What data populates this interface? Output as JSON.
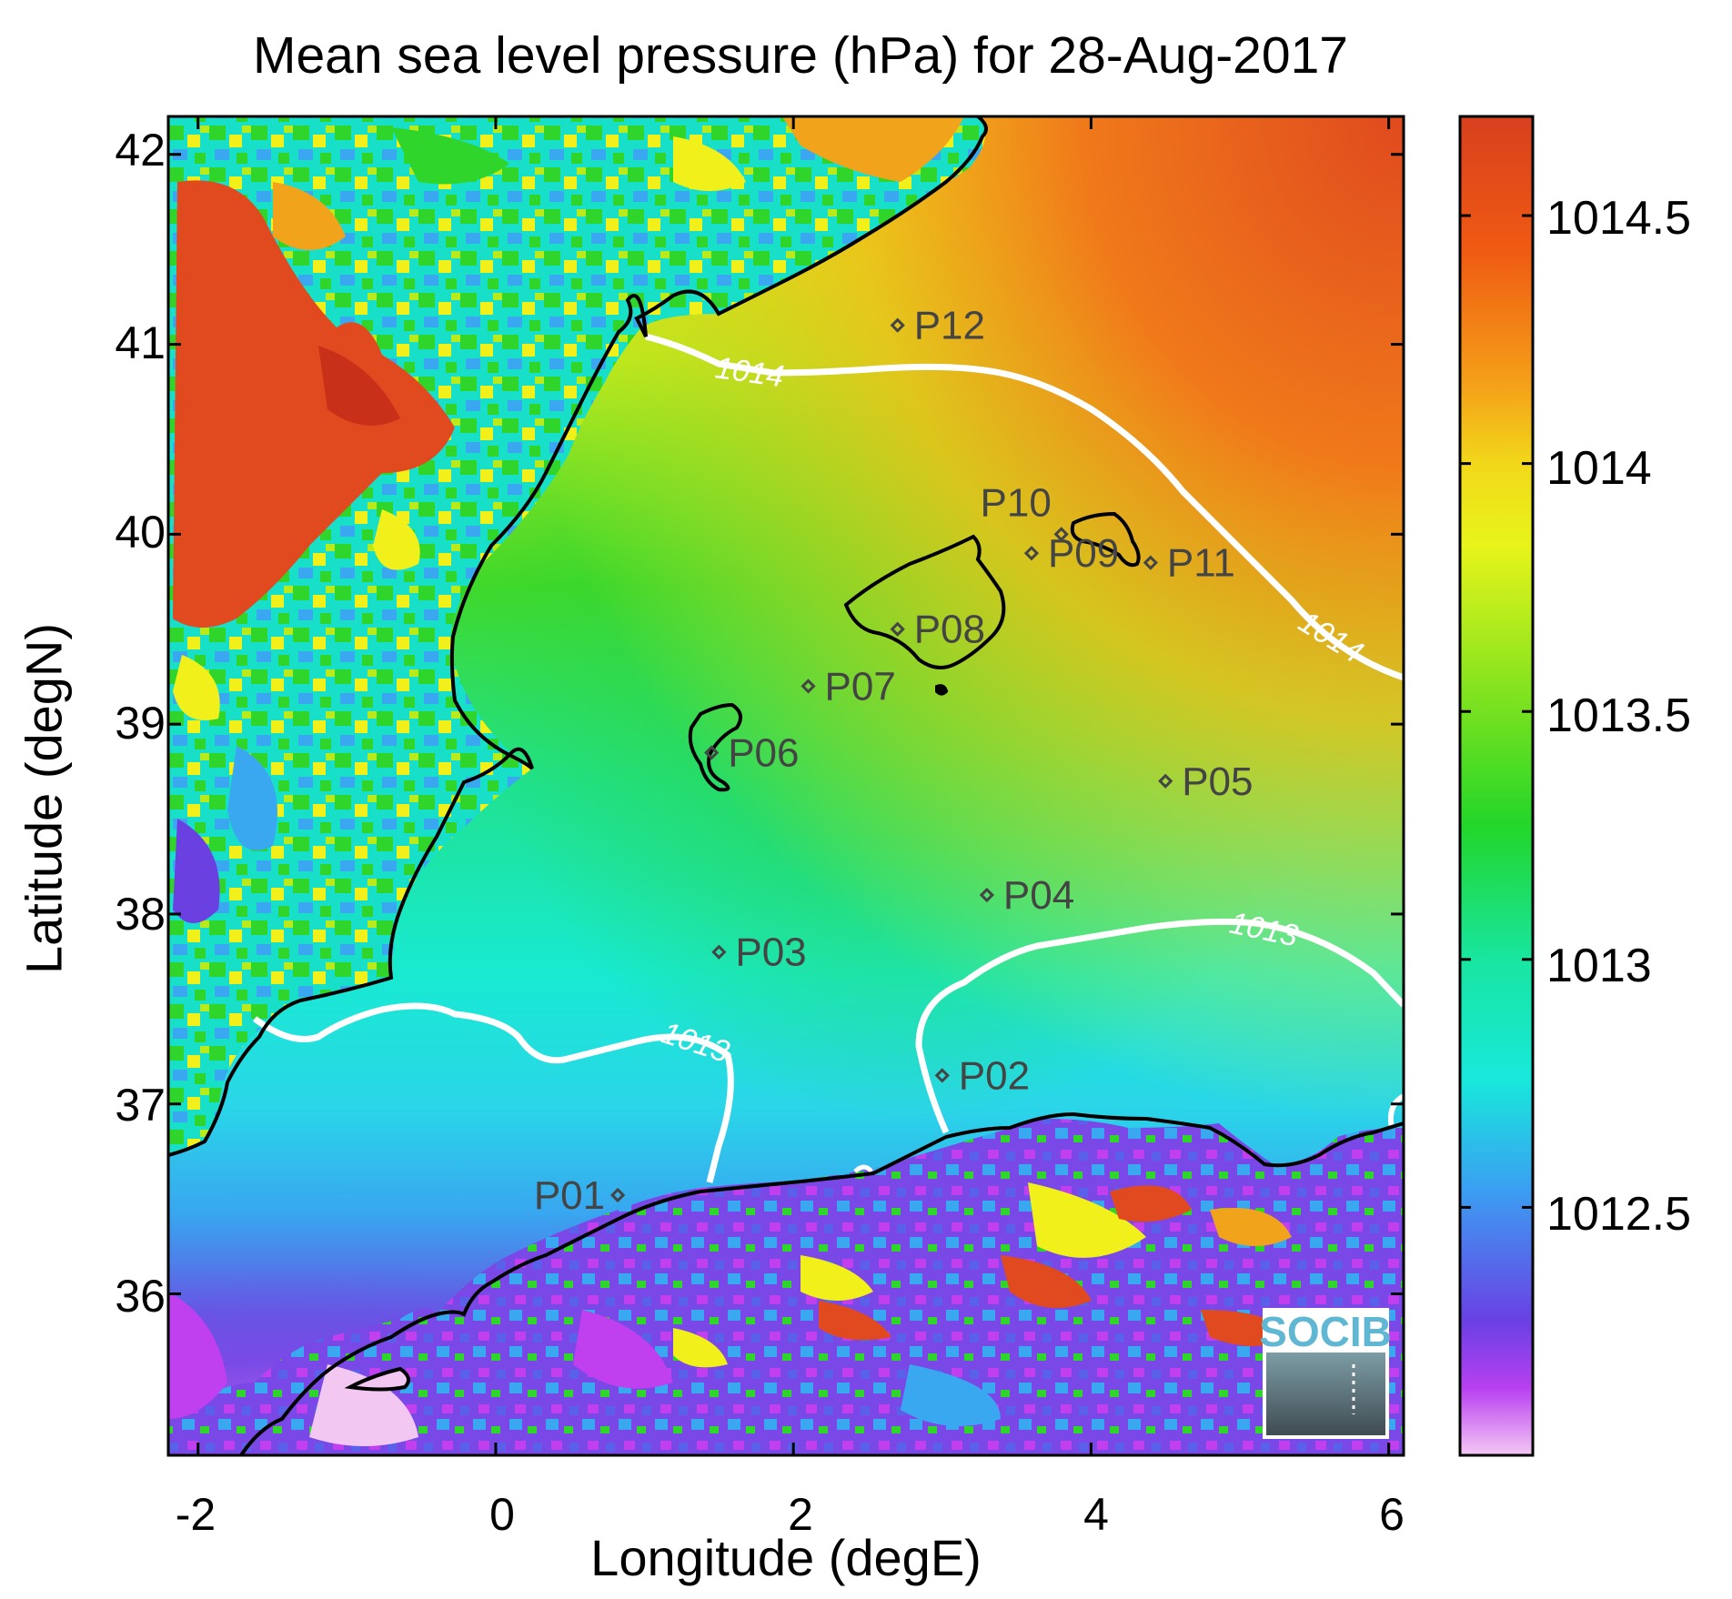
{
  "title": "Mean sea level pressure (hPa) for 28-Aug-2017",
  "xlabel": "Longitude (degE)",
  "ylabel": "Latitude (degN)",
  "xticks": [
    "-2",
    "0",
    "2",
    "4",
    "6"
  ],
  "yticks": [
    "42",
    "41",
    "40",
    "39",
    "38",
    "37",
    "36"
  ],
  "colorbar_ticks": [
    "1014.5",
    "1014",
    "1013.5",
    "1013",
    "1012.5"
  ],
  "contour_labels": [
    "1014",
    "1014",
    "1013",
    "1013"
  ],
  "stations": [
    {
      "id": "P01",
      "label": "P01"
    },
    {
      "id": "P02",
      "label": "P02"
    },
    {
      "id": "P03",
      "label": "P03"
    },
    {
      "id": "P04",
      "label": "P04"
    },
    {
      "id": "P05",
      "label": "P05"
    },
    {
      "id": "P06",
      "label": "P06"
    },
    {
      "id": "P07",
      "label": "P07"
    },
    {
      "id": "P08",
      "label": "P08"
    },
    {
      "id": "P09",
      "label": "P09"
    },
    {
      "id": "P10",
      "label": "P10"
    },
    {
      "id": "P11",
      "label": "P11"
    },
    {
      "id": "P12",
      "label": "P12"
    }
  ],
  "logo": "SOCIB",
  "colors": {
    "high": "#e04a1e",
    "orange": "#f2a31c",
    "yellow": "#f2f01a",
    "green": "#2fd52a",
    "cyan": "#18e8d8",
    "blue": "#3aa8f0",
    "purple": "#6a40e0",
    "magenta": "#c040f0",
    "low": "#f2c8f2",
    "contour": "#ffffff",
    "coast": "#000000"
  },
  "chart_data": {
    "type": "heatmap",
    "title": "Mean sea level pressure (hPa) for 28-Aug-2017",
    "xlabel": "Longitude (degE)",
    "ylabel": "Latitude (degN)",
    "xlim": [
      -2.2,
      6.1
    ],
    "ylim": [
      35.15,
      42.2
    ],
    "colorbar_range": [
      1012.0,
      1014.7
    ],
    "colorbar_ticks": [
      1014.5,
      1014,
      1013.5,
      1013,
      1012.5
    ],
    "contours": [
      1013,
      1014
    ],
    "stations": [
      {
        "name": "P01",
        "lon": 0.82,
        "lat": 36.52
      },
      {
        "name": "P02",
        "lon": 3.0,
        "lat": 37.15
      },
      {
        "name": "P03",
        "lon": 1.5,
        "lat": 37.8
      },
      {
        "name": "P04",
        "lon": 3.3,
        "lat": 38.1
      },
      {
        "name": "P05",
        "lon": 4.5,
        "lat": 38.7
      },
      {
        "name": "P06",
        "lon": 1.45,
        "lat": 38.85
      },
      {
        "name": "P07",
        "lon": 2.1,
        "lat": 39.2
      },
      {
        "name": "P08",
        "lon": 2.7,
        "lat": 39.5
      },
      {
        "name": "P09",
        "lon": 3.6,
        "lat": 39.9
      },
      {
        "name": "P10",
        "lon": 3.8,
        "lat": 40.0
      },
      {
        "name": "P11",
        "lon": 4.4,
        "lat": 39.85
      },
      {
        "name": "P12",
        "lon": 2.7,
        "lat": 41.1
      }
    ]
  }
}
